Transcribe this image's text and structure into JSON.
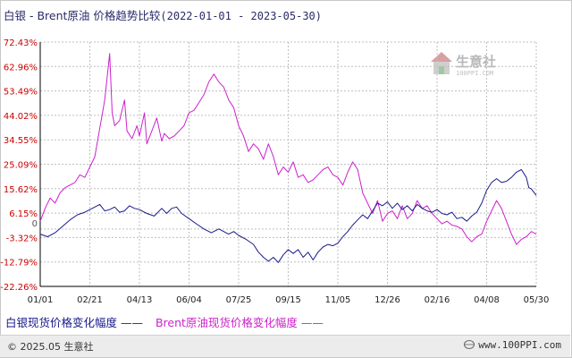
{
  "title": {
    "main": "白银 - Brent原油 价格趋势比较",
    "range": "(2022-01-01 - 2023-05-30)"
  },
  "watermark": {
    "text": "生意社",
    "url": "100PPI.COM"
  },
  "footer": {
    "copyright": "© 2025.05 生意社",
    "site": "www.100PPI.com"
  },
  "legend": {
    "silver": "白银现货价格变化幅度 ——",
    "brent": "Brent原油现货价格变化幅度 ——"
  },
  "colors": {
    "silver": "#1a1a8c",
    "brent": "#cc22cc",
    "grid": "#bfbfbf",
    "axis": "#000000",
    "tick_label": "#cc0000",
    "zero_label": "#555555"
  },
  "icons": {
    "footer_logo": "globe-logo-icon",
    "watermark": "house-logo-icon"
  },
  "chart_data": {
    "type": "line",
    "title": "白银 - Brent原油 价格趋势比较(2022-01-01 - 2023-05-30)",
    "xlabel": "",
    "ylabel": "",
    "x_ticks": [
      "01/01",
      "02/21",
      "04/13",
      "06/04",
      "07/25",
      "09/15",
      "11/05",
      "12/26",
      "02/16",
      "04/08",
      "05/30"
    ],
    "y_ticks": [
      "72.43%",
      "62.96%",
      "53.49%",
      "44.02%",
      "34.55%",
      "25.09%",
      "15.62%",
      "6.15%",
      "0",
      "-3.32%",
      "-12.79%",
      "-22.26%"
    ],
    "y_tick_values": [
      72.43,
      62.96,
      53.49,
      44.02,
      34.55,
      25.09,
      15.62,
      6.15,
      0,
      -3.32,
      -12.79,
      -22.26
    ],
    "ylim": [
      -22.26,
      72.43
    ],
    "xlim": [
      0,
      10
    ],
    "grid": true,
    "legend_position": "bottom-left",
    "series": [
      {
        "name": "白银现货价格变化幅度",
        "color": "#1a1a8c",
        "points": [
          [
            0,
            -2
          ],
          [
            0.15,
            -3
          ],
          [
            0.3,
            -1.5
          ],
          [
            0.45,
            1
          ],
          [
            0.6,
            3.5
          ],
          [
            0.75,
            5.5
          ],
          [
            0.9,
            6.5
          ],
          [
            1.05,
            8
          ],
          [
            1.2,
            9.5
          ],
          [
            1.3,
            7
          ],
          [
            1.4,
            7.5
          ],
          [
            1.5,
            8.5
          ],
          [
            1.6,
            6.5
          ],
          [
            1.7,
            7
          ],
          [
            1.8,
            9
          ],
          [
            1.9,
            8
          ],
          [
            2.0,
            7.5
          ],
          [
            2.15,
            6
          ],
          [
            2.3,
            5
          ],
          [
            2.45,
            8
          ],
          [
            2.55,
            6
          ],
          [
            2.65,
            8
          ],
          [
            2.75,
            8.5
          ],
          [
            2.85,
            6
          ],
          [
            3.0,
            4
          ],
          [
            3.15,
            2
          ],
          [
            3.3,
            0
          ],
          [
            3.45,
            -1.5
          ],
          [
            3.6,
            0
          ],
          [
            3.7,
            -1
          ],
          [
            3.8,
            -2
          ],
          [
            3.9,
            -1
          ],
          [
            4.0,
            -2.5
          ],
          [
            4.15,
            -4
          ],
          [
            4.3,
            -6
          ],
          [
            4.4,
            -9
          ],
          [
            4.5,
            -11
          ],
          [
            4.6,
            -12.5
          ],
          [
            4.7,
            -11
          ],
          [
            4.8,
            -13
          ],
          [
            4.9,
            -10
          ],
          [
            5.0,
            -8
          ],
          [
            5.1,
            -9.5
          ],
          [
            5.2,
            -8
          ],
          [
            5.3,
            -11
          ],
          [
            5.4,
            -9
          ],
          [
            5.5,
            -12
          ],
          [
            5.6,
            -9
          ],
          [
            5.7,
            -7
          ],
          [
            5.8,
            -6
          ],
          [
            5.9,
            -6.5
          ],
          [
            6.0,
            -5.5
          ],
          [
            6.1,
            -3
          ],
          [
            6.2,
            -1
          ],
          [
            6.3,
            1.5
          ],
          [
            6.4,
            3.5
          ],
          [
            6.5,
            5.5
          ],
          [
            6.6,
            4
          ],
          [
            6.7,
            7
          ],
          [
            6.8,
            10
          ],
          [
            6.9,
            9
          ],
          [
            7.0,
            10.5
          ],
          [
            7.1,
            8
          ],
          [
            7.2,
            10
          ],
          [
            7.3,
            7.5
          ],
          [
            7.4,
            9
          ],
          [
            7.5,
            7
          ],
          [
            7.6,
            9.5
          ],
          [
            7.7,
            8
          ],
          [
            7.8,
            7
          ],
          [
            7.9,
            6.5
          ],
          [
            8.0,
            7.5
          ],
          [
            8.1,
            6
          ],
          [
            8.2,
            5.5
          ],
          [
            8.3,
            6.5
          ],
          [
            8.4,
            4
          ],
          [
            8.5,
            4.5
          ],
          [
            8.6,
            3
          ],
          [
            8.7,
            5
          ],
          [
            8.8,
            6.5
          ],
          [
            8.9,
            10
          ],
          [
            9.0,
            15
          ],
          [
            9.1,
            18
          ],
          [
            9.2,
            19.5
          ],
          [
            9.3,
            18
          ],
          [
            9.4,
            18.5
          ],
          [
            9.5,
            20
          ],
          [
            9.6,
            22
          ],
          [
            9.7,
            23
          ],
          [
            9.8,
            20
          ],
          [
            9.85,
            16
          ],
          [
            9.9,
            15.5
          ],
          [
            10.0,
            13
          ]
        ]
      },
      {
        "name": "Brent原油现货价格变化幅度",
        "color": "#cc22cc",
        "points": [
          [
            0,
            3
          ],
          [
            0.1,
            8
          ],
          [
            0.2,
            12
          ],
          [
            0.3,
            10
          ],
          [
            0.4,
            14
          ],
          [
            0.5,
            16
          ],
          [
            0.6,
            17
          ],
          [
            0.7,
            18
          ],
          [
            0.8,
            21
          ],
          [
            0.9,
            20
          ],
          [
            1.0,
            24
          ],
          [
            1.1,
            28
          ],
          [
            1.2,
            39
          ],
          [
            1.3,
            50
          ],
          [
            1.4,
            68
          ],
          [
            1.45,
            45
          ],
          [
            1.5,
            40
          ],
          [
            1.6,
            42
          ],
          [
            1.7,
            50
          ],
          [
            1.75,
            38
          ],
          [
            1.85,
            35
          ],
          [
            1.95,
            40
          ],
          [
            2.0,
            36
          ],
          [
            2.1,
            45
          ],
          [
            2.15,
            33
          ],
          [
            2.25,
            38
          ],
          [
            2.35,
            43
          ],
          [
            2.45,
            34
          ],
          [
            2.5,
            37
          ],
          [
            2.6,
            35
          ],
          [
            2.7,
            36
          ],
          [
            2.8,
            38
          ],
          [
            2.9,
            40
          ],
          [
            3.0,
            45
          ],
          [
            3.1,
            46
          ],
          [
            3.2,
            49
          ],
          [
            3.3,
            52
          ],
          [
            3.4,
            57
          ],
          [
            3.5,
            60
          ],
          [
            3.6,
            57
          ],
          [
            3.7,
            55
          ],
          [
            3.8,
            50
          ],
          [
            3.9,
            47
          ],
          [
            4.0,
            40
          ],
          [
            4.1,
            36
          ],
          [
            4.2,
            30
          ],
          [
            4.3,
            33
          ],
          [
            4.4,
            31
          ],
          [
            4.5,
            27
          ],
          [
            4.6,
            33
          ],
          [
            4.7,
            28
          ],
          [
            4.8,
            21
          ],
          [
            4.9,
            24
          ],
          [
            5.0,
            22
          ],
          [
            5.1,
            26
          ],
          [
            5.2,
            20
          ],
          [
            5.3,
            21
          ],
          [
            5.4,
            18
          ],
          [
            5.5,
            19
          ],
          [
            5.6,
            21
          ],
          [
            5.7,
            23
          ],
          [
            5.8,
            24
          ],
          [
            5.9,
            21
          ],
          [
            6.0,
            20
          ],
          [
            6.1,
            17
          ],
          [
            6.2,
            22
          ],
          [
            6.3,
            26
          ],
          [
            6.4,
            23
          ],
          [
            6.5,
            14
          ],
          [
            6.6,
            10
          ],
          [
            6.7,
            6
          ],
          [
            6.8,
            11
          ],
          [
            6.9,
            3
          ],
          [
            7.0,
            6
          ],
          [
            7.1,
            7
          ],
          [
            7.2,
            4
          ],
          [
            7.3,
            9
          ],
          [
            7.4,
            4
          ],
          [
            7.5,
            6
          ],
          [
            7.6,
            11
          ],
          [
            7.7,
            8
          ],
          [
            7.8,
            9
          ],
          [
            7.9,
            6
          ],
          [
            8.0,
            4
          ],
          [
            8.1,
            2
          ],
          [
            8.2,
            3
          ],
          [
            8.3,
            1.5
          ],
          [
            8.4,
            1
          ],
          [
            8.5,
            0
          ],
          [
            8.6,
            -3
          ],
          [
            8.7,
            -5
          ],
          [
            8.8,
            -3
          ],
          [
            8.9,
            -2
          ],
          [
            9.0,
            3
          ],
          [
            9.1,
            7
          ],
          [
            9.2,
            11
          ],
          [
            9.3,
            8
          ],
          [
            9.4,
            3
          ],
          [
            9.5,
            -2
          ],
          [
            9.6,
            -6
          ],
          [
            9.7,
            -4
          ],
          [
            9.8,
            -3
          ],
          [
            9.9,
            -1
          ],
          [
            10.0,
            -2
          ]
        ]
      }
    ]
  }
}
